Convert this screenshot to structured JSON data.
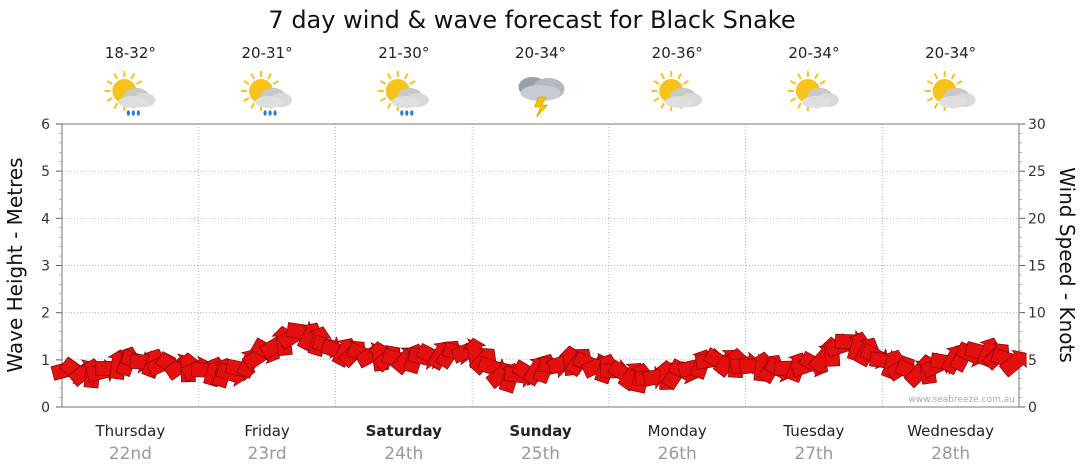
{
  "title": "7 day wind & wave forecast for Black Snake",
  "credit": "www.seabreeze.com.au",
  "colors": {
    "arrow": "#e41010",
    "arrow_stroke": "#8a0000",
    "grid": "#999999",
    "sun": "#f7c21a",
    "cloud": "#c8c8c8"
  },
  "days": [
    {
      "name": "Thursday",
      "date": "22nd",
      "bold": false,
      "temp": "18-32°",
      "icon": "sun-cloud-rain-icon"
    },
    {
      "name": "Friday",
      "date": "23rd",
      "bold": false,
      "temp": "20-31°",
      "icon": "sun-cloud-rain-icon"
    },
    {
      "name": "Saturday",
      "date": "24th",
      "bold": true,
      "temp": "21-30°",
      "icon": "sun-cloud-rain-icon"
    },
    {
      "name": "Sunday",
      "date": "25th",
      "bold": true,
      "temp": "20-34°",
      "icon": "storm-cloud-icon"
    },
    {
      "name": "Monday",
      "date": "26th",
      "bold": false,
      "temp": "20-36°",
      "icon": "sun-cloud-icon"
    },
    {
      "name": "Tuesday",
      "date": "27th",
      "bold": false,
      "temp": "20-34°",
      "icon": "sun-cloud-icon"
    },
    {
      "name": "Wednesday",
      "date": "28th",
      "bold": false,
      "temp": "20-34°",
      "icon": "sun-cloud-icon"
    }
  ],
  "chart_data": {
    "type": "line",
    "title": "7 day wind & wave forecast for Black Snake",
    "ylabel_left": "Wave Height - Metres",
    "ylabel_right": "Wind Speed - Knots",
    "ylim_left": [
      0,
      6
    ],
    "ylim_right": [
      0,
      30
    ],
    "yticks_left": [
      0,
      1,
      2,
      3,
      4,
      5,
      6
    ],
    "yticks_right": [
      0,
      5,
      10,
      15,
      20,
      25,
      30
    ],
    "x_unit": "days from Thursday 22nd 00:00",
    "series": [
      {
        "name": "Wind Speed (knots, wind arrows)",
        "x": [
          0,
          0.25,
          0.5,
          0.75,
          1,
          1.25,
          1.5,
          1.75,
          2,
          2.25,
          2.5,
          2.75,
          3,
          3.25,
          3.5,
          3.75,
          4,
          4.25,
          4.5,
          4.75,
          5,
          5.25,
          5.5,
          5.75,
          6,
          6.25,
          6.5,
          6.75,
          7
        ],
        "values": [
          4,
          3.5,
          5,
          4.5,
          4,
          3.5,
          6,
          8,
          6,
          5.5,
          5,
          5.5,
          6,
          3,
          4,
          5,
          4,
          3,
          3.5,
          5,
          4.5,
          4,
          4.5,
          7,
          5,
          3.5,
          5,
          6,
          4.5
        ]
      }
    ]
  }
}
